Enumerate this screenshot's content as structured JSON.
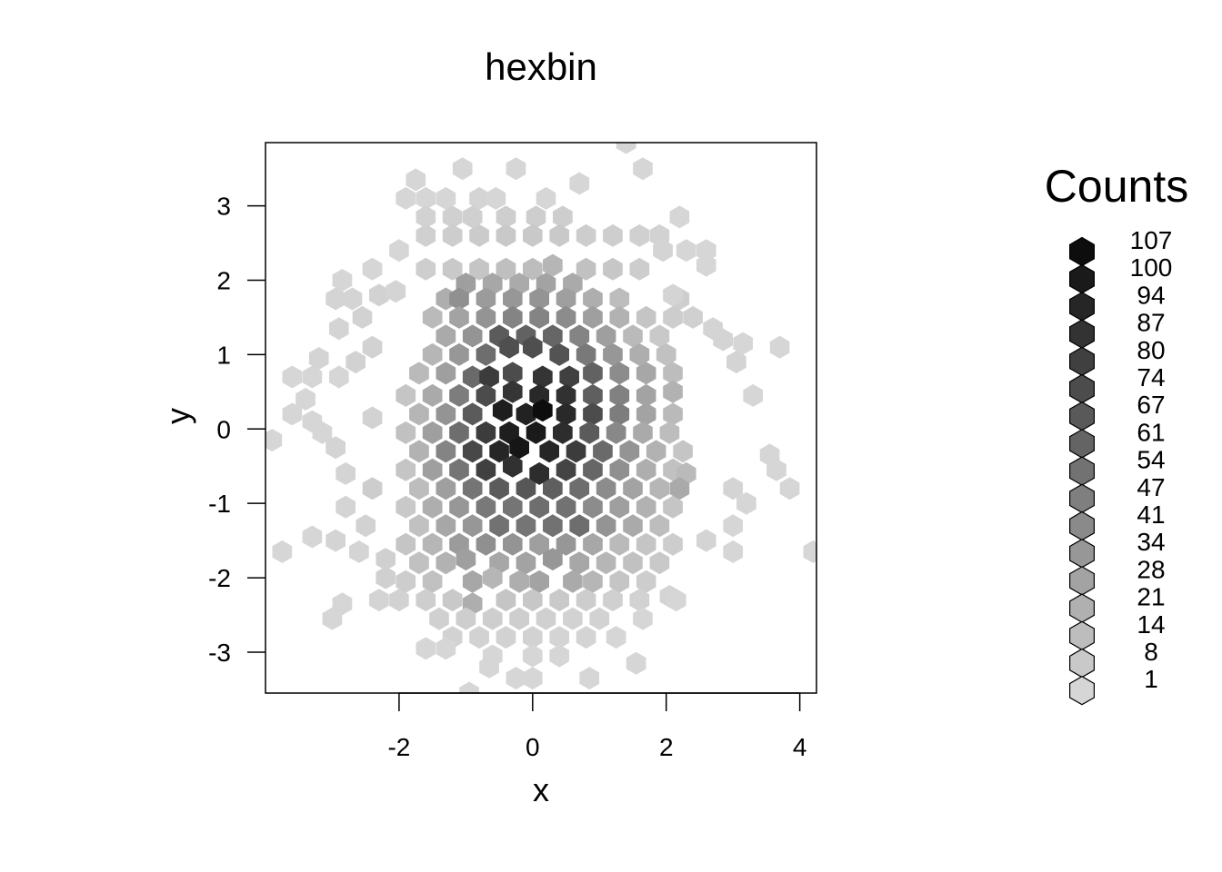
{
  "chart_data": {
    "type": "heatmap",
    "subtype": "hexbin",
    "title": "hexbin",
    "xlabel": "x",
    "ylabel": "y",
    "xlim": [
      -4.0,
      4.25
    ],
    "ylim": [
      -3.55,
      3.85
    ],
    "xticks": [
      -2,
      0,
      2,
      4
    ],
    "yticks": [
      -3,
      -2,
      -1,
      0,
      1,
      2,
      3
    ],
    "legend": {
      "title": "Counts",
      "position": "right",
      "breaks": [
        107,
        100,
        94,
        87,
        80,
        74,
        67,
        61,
        54,
        47,
        41,
        34,
        28,
        21,
        14,
        8,
        1
      ]
    },
    "color_scale": {
      "low": "#d6d6d6",
      "high": "#0d0d0d"
    },
    "count_max": 107,
    "cells": [
      [
        1.4,
        3.85,
        1
      ],
      [
        -1.05,
        3.5,
        1
      ],
      [
        -0.25,
        3.5,
        1
      ],
      [
        1.65,
        3.5,
        1
      ],
      [
        -1.75,
        3.35,
        1
      ],
      [
        0.7,
        3.3,
        1
      ],
      [
        -1.9,
        3.1,
        1
      ],
      [
        -1.6,
        3.1,
        1
      ],
      [
        -1.3,
        3.1,
        1
      ],
      [
        -0.8,
        3.1,
        2
      ],
      [
        -0.55,
        3.1,
        1
      ],
      [
        0.2,
        3.1,
        1
      ],
      [
        -1.6,
        2.85,
        3
      ],
      [
        -1.2,
        2.85,
        4
      ],
      [
        -0.9,
        2.85,
        4
      ],
      [
        -0.4,
        2.85,
        5
      ],
      [
        0.05,
        2.85,
        5
      ],
      [
        0.45,
        2.85,
        5
      ],
      [
        2.2,
        2.85,
        1
      ],
      [
        -1.6,
        2.6,
        4
      ],
      [
        -1.2,
        2.6,
        6
      ],
      [
        -0.8,
        2.6,
        7
      ],
      [
        -0.4,
        2.6,
        8
      ],
      [
        0.0,
        2.6,
        8
      ],
      [
        0.4,
        2.6,
        8
      ],
      [
        0.8,
        2.6,
        6
      ],
      [
        1.2,
        2.6,
        5
      ],
      [
        1.6,
        2.6,
        4
      ],
      [
        1.9,
        2.6,
        3
      ],
      [
        -2.0,
        2.4,
        1
      ],
      [
        1.95,
        2.4,
        2
      ],
      [
        2.3,
        2.4,
        1
      ],
      [
        2.6,
        2.4,
        1
      ],
      [
        2.6,
        2.2,
        1
      ],
      [
        -2.4,
        2.15,
        1
      ],
      [
        -1.6,
        2.15,
        5
      ],
      [
        -1.2,
        2.15,
        8
      ],
      [
        -0.8,
        2.15,
        10
      ],
      [
        -0.4,
        2.15,
        13
      ],
      [
        0.0,
        2.15,
        14
      ],
      [
        0.3,
        2.2,
        18
      ],
      [
        0.8,
        2.15,
        12
      ],
      [
        1.2,
        2.15,
        9
      ],
      [
        1.6,
        2.15,
        6
      ],
      [
        -2.85,
        2.0,
        1
      ],
      [
        -1.0,
        1.95,
        30
      ],
      [
        -0.6,
        1.95,
        26
      ],
      [
        -0.2,
        1.95,
        24
      ],
      [
        0.2,
        1.95,
        28
      ],
      [
        0.6,
        1.95,
        24
      ],
      [
        -2.3,
        1.8,
        3
      ],
      [
        -2.05,
        1.85,
        2
      ],
      [
        -1.3,
        1.75,
        22
      ],
      [
        -1.1,
        1.75,
        38
      ],
      [
        -0.7,
        1.75,
        32
      ],
      [
        -0.3,
        1.75,
        34
      ],
      [
        0.1,
        1.75,
        36
      ],
      [
        0.5,
        1.75,
        30
      ],
      [
        0.9,
        1.75,
        22
      ],
      [
        1.3,
        1.75,
        14
      ],
      [
        2.2,
        1.75,
        5
      ],
      [
        2.1,
        1.8,
        2
      ],
      [
        -2.95,
        1.75,
        2
      ],
      [
        -2.7,
        1.75,
        2
      ],
      [
        -1.5,
        1.5,
        16
      ],
      [
        -1.1,
        1.5,
        28
      ],
      [
        -0.7,
        1.5,
        36
      ],
      [
        -0.3,
        1.5,
        44
      ],
      [
        0.1,
        1.5,
        44
      ],
      [
        0.5,
        1.5,
        40
      ],
      [
        0.9,
        1.5,
        30
      ],
      [
        1.3,
        1.5,
        20
      ],
      [
        1.7,
        1.5,
        10
      ],
      [
        2.1,
        1.5,
        6
      ],
      [
        2.4,
        1.5,
        4
      ],
      [
        -2.55,
        1.5,
        3
      ],
      [
        -2.9,
        1.35,
        2
      ],
      [
        -1.3,
        1.25,
        24
      ],
      [
        -0.9,
        1.25,
        36
      ],
      [
        -0.5,
        1.25,
        66
      ],
      [
        -0.1,
        1.25,
        62
      ],
      [
        0.3,
        1.25,
        60
      ],
      [
        0.7,
        1.25,
        44
      ],
      [
        1.1,
        1.25,
        30
      ],
      [
        1.5,
        1.25,
        16
      ],
      [
        1.9,
        1.25,
        8
      ],
      [
        2.7,
        1.35,
        2
      ],
      [
        -2.4,
        1.1,
        3
      ],
      [
        2.85,
        1.2,
        2
      ],
      [
        3.15,
        1.15,
        1
      ],
      [
        3.7,
        1.1,
        1
      ],
      [
        -1.5,
        1.0,
        18
      ],
      [
        -1.1,
        1.0,
        34
      ],
      [
        -0.7,
        1.0,
        56
      ],
      [
        -0.35,
        1.1,
        72
      ],
      [
        0.0,
        1.1,
        72
      ],
      [
        0.4,
        1.0,
        70
      ],
      [
        0.8,
        1.0,
        50
      ],
      [
        1.2,
        1.0,
        34
      ],
      [
        1.6,
        1.0,
        22
      ],
      [
        2.0,
        1.0,
        12
      ],
      [
        -3.2,
        0.95,
        2
      ],
      [
        -2.65,
        0.9,
        3
      ],
      [
        3.05,
        0.9,
        2
      ],
      [
        -1.7,
        0.75,
        16
      ],
      [
        -1.3,
        0.75,
        30
      ],
      [
        -0.9,
        0.7,
        58
      ],
      [
        -0.65,
        0.7,
        82
      ],
      [
        -0.3,
        0.75,
        74
      ],
      [
        0.15,
        0.7,
        86
      ],
      [
        0.55,
        0.7,
        80
      ],
      [
        0.9,
        0.75,
        62
      ],
      [
        1.3,
        0.75,
        40
      ],
      [
        1.7,
        0.75,
        26
      ],
      [
        2.1,
        0.75,
        14
      ],
      [
        -3.6,
        0.7,
        1
      ],
      [
        -3.3,
        0.7,
        1
      ],
      [
        -2.9,
        0.7,
        1
      ],
      [
        -1.9,
        0.45,
        10
      ],
      [
        -1.5,
        0.45,
        24
      ],
      [
        -1.1,
        0.45,
        48
      ],
      [
        -0.7,
        0.45,
        74
      ],
      [
        -0.3,
        0.5,
        86
      ],
      [
        0.1,
        0.45,
        92
      ],
      [
        0.5,
        0.45,
        88
      ],
      [
        0.9,
        0.45,
        64
      ],
      [
        1.3,
        0.45,
        46
      ],
      [
        1.7,
        0.45,
        28
      ],
      [
        2.1,
        0.5,
        20
      ],
      [
        -3.4,
        0.4,
        1
      ],
      [
        3.3,
        0.45,
        1
      ],
      [
        -1.7,
        0.2,
        18
      ],
      [
        -1.3,
        0.2,
        36
      ],
      [
        -0.9,
        0.2,
        66
      ],
      [
        -0.45,
        0.25,
        98
      ],
      [
        -0.1,
        0.2,
        96
      ],
      [
        0.15,
        0.25,
        107
      ],
      [
        0.5,
        0.2,
        92
      ],
      [
        0.9,
        0.2,
        74
      ],
      [
        1.3,
        0.2,
        48
      ],
      [
        1.7,
        0.2,
        28
      ],
      [
        2.1,
        0.2,
        16
      ],
      [
        -3.6,
        0.2,
        1
      ],
      [
        -3.3,
        0.1,
        1
      ],
      [
        -2.4,
        0.15,
        3
      ],
      [
        -1.9,
        -0.05,
        12
      ],
      [
        -1.5,
        -0.05,
        30
      ],
      [
        -1.1,
        -0.05,
        56
      ],
      [
        -0.7,
        -0.05,
        82
      ],
      [
        -0.35,
        -0.05,
        98
      ],
      [
        0.05,
        -0.05,
        100
      ],
      [
        0.45,
        -0.05,
        90
      ],
      [
        0.85,
        -0.05,
        66
      ],
      [
        1.25,
        -0.05,
        42
      ],
      [
        1.65,
        -0.05,
        24
      ],
      [
        2.05,
        -0.05,
        14
      ],
      [
        -3.9,
        -0.15,
        1
      ],
      [
        -3.15,
        -0.05,
        1
      ],
      [
        -1.7,
        -0.3,
        20
      ],
      [
        -1.3,
        -0.3,
        44
      ],
      [
        -0.9,
        -0.3,
        76
      ],
      [
        -0.5,
        -0.3,
        94
      ],
      [
        -0.2,
        -0.25,
        102
      ],
      [
        0.25,
        -0.3,
        94
      ],
      [
        0.65,
        -0.3,
        82
      ],
      [
        1.05,
        -0.3,
        58
      ],
      [
        1.45,
        -0.3,
        36
      ],
      [
        1.85,
        -0.3,
        20
      ],
      [
        2.25,
        -0.3,
        10
      ],
      [
        -2.95,
        -0.25,
        2
      ],
      [
        3.55,
        -0.35,
        1
      ],
      [
        -1.9,
        -0.55,
        10
      ],
      [
        -1.5,
        -0.55,
        30
      ],
      [
        -1.1,
        -0.55,
        52
      ],
      [
        -0.7,
        -0.55,
        80
      ],
      [
        -0.3,
        -0.5,
        88
      ],
      [
        0.1,
        -0.6,
        90
      ],
      [
        0.5,
        -0.55,
        78
      ],
      [
        0.9,
        -0.55,
        60
      ],
      [
        1.3,
        -0.55,
        38
      ],
      [
        1.7,
        -0.55,
        22
      ],
      [
        2.1,
        -0.55,
        12
      ],
      [
        2.3,
        -0.6,
        16
      ],
      [
        -2.8,
        -0.6,
        2
      ],
      [
        3.65,
        -0.55,
        1
      ],
      [
        -1.7,
        -0.8,
        14
      ],
      [
        -1.3,
        -0.8,
        30
      ],
      [
        -0.9,
        -0.8,
        52
      ],
      [
        -0.5,
        -0.8,
        66
      ],
      [
        -0.1,
        -0.8,
        68
      ],
      [
        0.3,
        -0.8,
        64
      ],
      [
        0.7,
        -0.8,
        56
      ],
      [
        1.1,
        -0.8,
        40
      ],
      [
        1.5,
        -0.8,
        28
      ],
      [
        1.9,
        -0.8,
        18
      ],
      [
        2.2,
        -0.8,
        24
      ],
      [
        -2.4,
        -0.8,
        6
      ],
      [
        3.0,
        -0.8,
        2
      ],
      [
        3.85,
        -0.8,
        1
      ],
      [
        -1.9,
        -1.05,
        8
      ],
      [
        -1.5,
        -1.05,
        22
      ],
      [
        -1.1,
        -1.05,
        34
      ],
      [
        -0.7,
        -1.05,
        50
      ],
      [
        -0.3,
        -1.05,
        52
      ],
      [
        0.1,
        -1.05,
        56
      ],
      [
        0.5,
        -1.05,
        54
      ],
      [
        0.9,
        -1.05,
        40
      ],
      [
        1.3,
        -1.05,
        30
      ],
      [
        1.7,
        -1.05,
        20
      ],
      [
        2.1,
        -1.05,
        10
      ],
      [
        3.2,
        -1.0,
        1
      ],
      [
        -2.8,
        -1.05,
        2
      ],
      [
        -1.7,
        -1.3,
        12
      ],
      [
        -1.3,
        -1.3,
        26
      ],
      [
        -0.9,
        -1.3,
        34
      ],
      [
        -0.5,
        -1.3,
        54
      ],
      [
        -0.1,
        -1.3,
        52
      ],
      [
        0.3,
        -1.3,
        54
      ],
      [
        0.7,
        -1.3,
        56
      ],
      [
        1.1,
        -1.3,
        36
      ],
      [
        1.5,
        -1.3,
        24
      ],
      [
        1.9,
        -1.3,
        14
      ],
      [
        3.0,
        -1.3,
        1
      ],
      [
        -2.5,
        -1.3,
        3
      ],
      [
        -1.9,
        -1.55,
        10
      ],
      [
        -1.5,
        -1.55,
        18
      ],
      [
        -1.1,
        -1.55,
        32
      ],
      [
        -0.7,
        -1.55,
        38
      ],
      [
        -0.3,
        -1.55,
        36
      ],
      [
        0.1,
        -1.55,
        30
      ],
      [
        0.5,
        -1.55,
        34
      ],
      [
        0.9,
        -1.55,
        26
      ],
      [
        1.3,
        -1.55,
        16
      ],
      [
        1.7,
        -1.55,
        10
      ],
      [
        2.1,
        -1.55,
        6
      ],
      [
        2.6,
        -1.5,
        2
      ],
      [
        -3.3,
        -1.45,
        1
      ],
      [
        -2.95,
        -1.5,
        2
      ],
      [
        -3.75,
        -1.65,
        1
      ],
      [
        -1.7,
        -1.8,
        12
      ],
      [
        -1.3,
        -1.8,
        20
      ],
      [
        -1.0,
        -1.75,
        30
      ],
      [
        -0.5,
        -1.8,
        26
      ],
      [
        -0.1,
        -1.8,
        28
      ],
      [
        0.3,
        -1.75,
        34
      ],
      [
        0.7,
        -1.8,
        26
      ],
      [
        1.1,
        -1.8,
        18
      ],
      [
        1.5,
        -1.8,
        12
      ],
      [
        1.9,
        -1.8,
        8
      ],
      [
        3.0,
        -1.65,
        1
      ],
      [
        4.2,
        -1.65,
        1
      ],
      [
        -2.6,
        -1.65,
        2
      ],
      [
        -2.2,
        -1.75,
        4
      ],
      [
        -1.9,
        -2.05,
        6
      ],
      [
        -1.5,
        -2.05,
        12
      ],
      [
        -0.9,
        -2.05,
        26
      ],
      [
        -0.6,
        -2.0,
        18
      ],
      [
        -0.2,
        -2.05,
        22
      ],
      [
        0.1,
        -2.05,
        28
      ],
      [
        0.6,
        -2.05,
        24
      ],
      [
        0.9,
        -2.05,
        18
      ],
      [
        1.3,
        -2.05,
        10
      ],
      [
        1.7,
        -2.05,
        6
      ],
      [
        -2.2,
        -2.0,
        4
      ],
      [
        -2.3,
        -2.3,
        2
      ],
      [
        -2.0,
        -2.3,
        3
      ],
      [
        -1.6,
        -2.3,
        5
      ],
      [
        -1.2,
        -2.3,
        8
      ],
      [
        -0.9,
        -2.35,
        22
      ],
      [
        -0.4,
        -2.3,
        10
      ],
      [
        0.0,
        -2.3,
        9
      ],
      [
        0.4,
        -2.3,
        8
      ],
      [
        0.8,
        -2.3,
        6
      ],
      [
        1.2,
        -2.3,
        4
      ],
      [
        1.6,
        -2.3,
        3
      ],
      [
        2.05,
        -2.25,
        2
      ],
      [
        2.15,
        -2.3,
        1
      ],
      [
        -2.85,
        -2.35,
        1
      ],
      [
        -3.0,
        -2.55,
        1
      ],
      [
        -1.4,
        -2.55,
        4
      ],
      [
        -1.0,
        -2.55,
        5
      ],
      [
        -0.6,
        -2.55,
        5
      ],
      [
        -0.2,
        -2.55,
        5
      ],
      [
        0.2,
        -2.55,
        4
      ],
      [
        0.6,
        -2.55,
        3
      ],
      [
        1.0,
        -2.55,
        3
      ],
      [
        1.65,
        -2.55,
        1
      ],
      [
        -1.2,
        -2.8,
        3
      ],
      [
        -0.8,
        -2.8,
        3
      ],
      [
        -0.4,
        -2.8,
        3
      ],
      [
        0.0,
        -2.8,
        3
      ],
      [
        0.4,
        -2.8,
        2
      ],
      [
        0.8,
        -2.8,
        2
      ],
      [
        1.25,
        -2.8,
        1
      ],
      [
        -1.6,
        -2.95,
        1
      ],
      [
        -1.3,
        -2.95,
        1
      ],
      [
        -0.6,
        -3.05,
        1
      ],
      [
        0.0,
        -3.05,
        1
      ],
      [
        0.4,
        -3.05,
        1
      ],
      [
        1.55,
        -3.15,
        1
      ],
      [
        -0.65,
        -3.2,
        1
      ],
      [
        -0.25,
        -3.35,
        1
      ],
      [
        0.0,
        -3.35,
        1
      ],
      [
        0.85,
        -3.35,
        1
      ],
      [
        -0.95,
        -3.55,
        1
      ]
    ]
  }
}
